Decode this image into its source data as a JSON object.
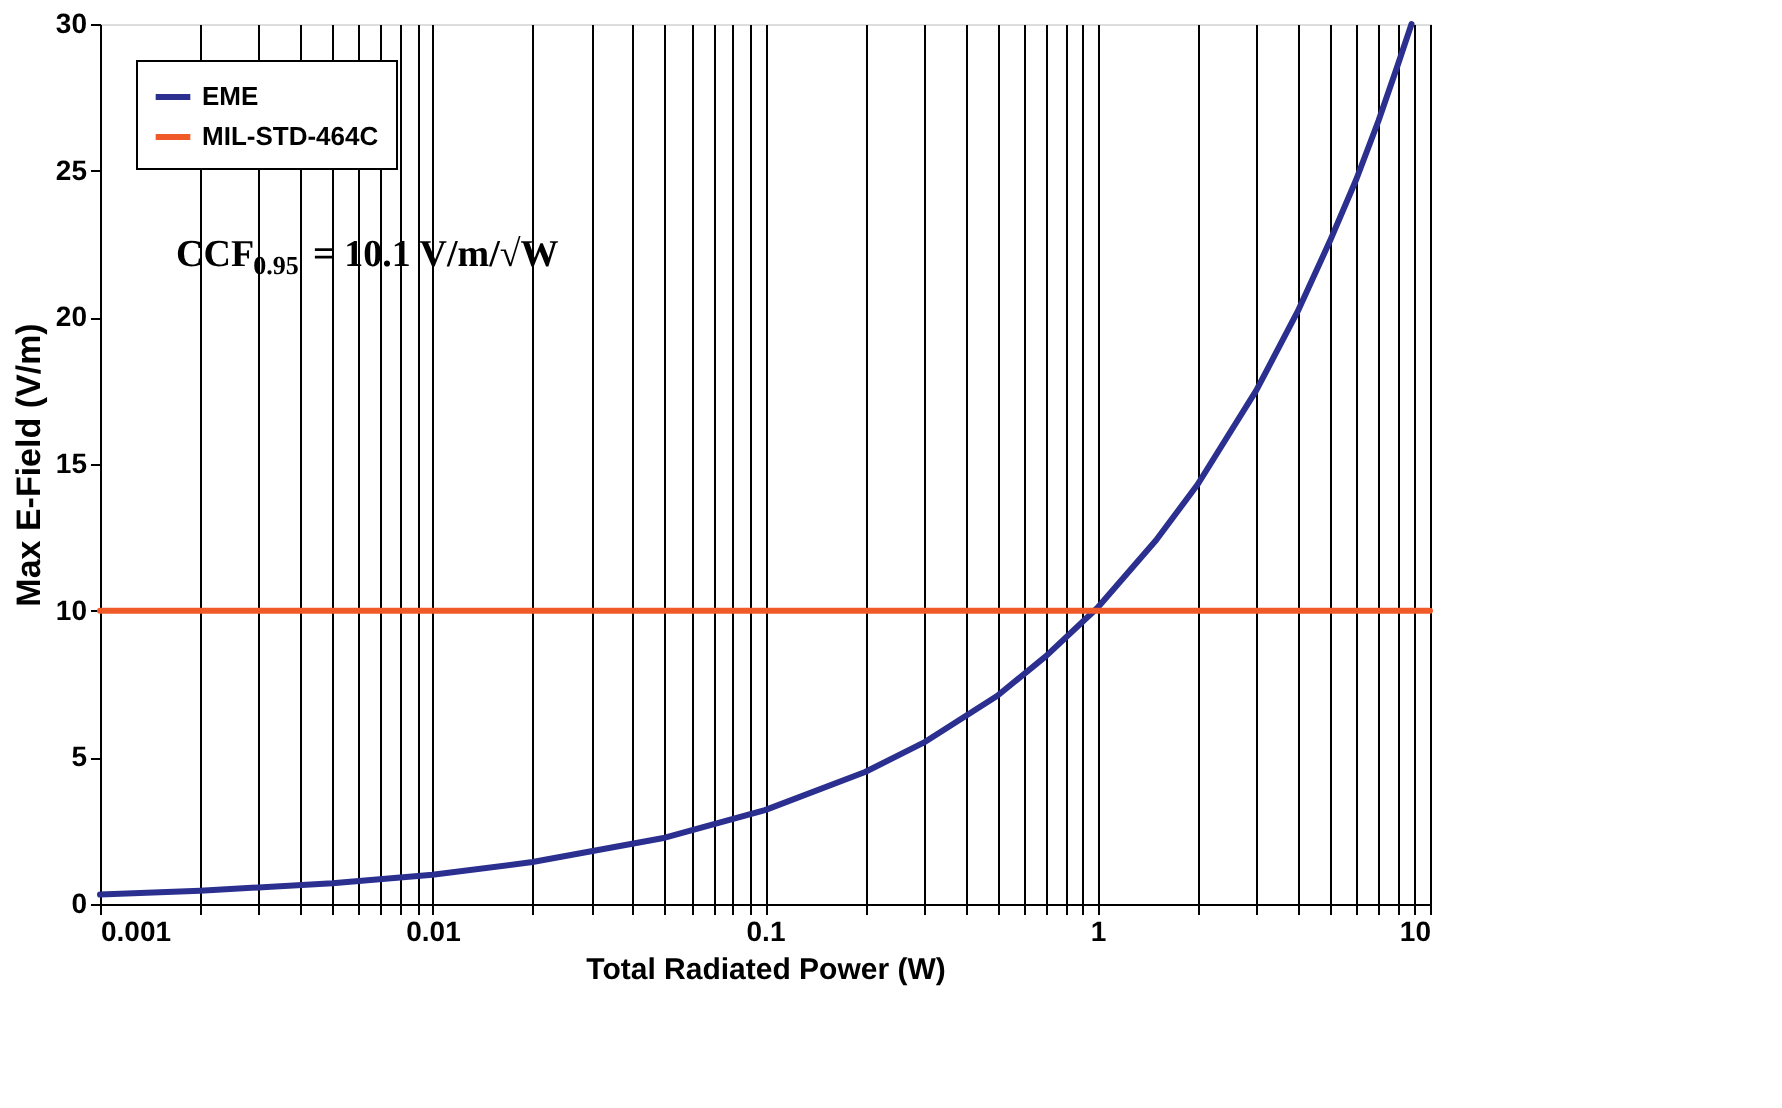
{
  "chart_data": {
    "type": "line",
    "xlabel": "Total Radiated Power (W)",
    "ylabel": "Max E-Field  (V/m)",
    "log": "x",
    "grid": "x",
    "legend": "top left",
    "line_style": "solid",
    "marker": "none",
    "xlim": [
      0.001,
      10
    ],
    "ylim": [
      0,
      30
    ],
    "xticks": [
      0.001,
      {
        "value": 0.002,
        "label": null
      },
      {
        "value": 0.003,
        "label": null
      },
      {
        "value": 0.004,
        "label": null
      },
      {
        "value": 0.005,
        "label": null
      },
      {
        "value": 0.006,
        "label": null
      },
      {
        "value": 0.007,
        "label": null
      },
      {
        "value": 0.008,
        "label": null
      },
      {
        "value": 0.009,
        "label": null
      },
      0.01,
      {
        "value": 0.02,
        "label": null
      },
      {
        "value": 0.03,
        "label": null
      },
      {
        "value": 0.04,
        "label": null
      },
      {
        "value": 0.05,
        "label": null
      },
      {
        "value": 0.06,
        "label": null
      },
      {
        "value": 0.07,
        "label": null
      },
      {
        "value": 0.08,
        "label": null
      },
      {
        "value": 0.09,
        "label": null
      },
      0.1,
      {
        "value": 0.2,
        "label": null
      },
      {
        "value": 0.3,
        "label": null
      },
      {
        "value": 0.4,
        "label": null
      },
      {
        "value": 0.5,
        "label": null
      },
      {
        "value": 0.6,
        "label": null
      },
      {
        "value": 0.7,
        "label": null
      },
      {
        "value": 0.8,
        "label": null
      },
      {
        "value": 0.9,
        "label": null
      },
      1,
      {
        "value": 2,
        "label": null
      },
      {
        "value": 3,
        "label": null
      },
      {
        "value": 4,
        "label": null
      },
      {
        "value": 5,
        "label": null
      },
      {
        "value": 6,
        "label": null
      },
      {
        "value": 7,
        "label": null
      },
      {
        "value": 8,
        "label": null
      },
      {
        "value": 9,
        "label": null
      },
      10
    ],
    "yticks": [
      0,
      5,
      10,
      15,
      20,
      25,
      30
    ],
    "series": [
      {
        "name": "EME",
        "color": "#2b2f8f",
        "x": [
          0.001,
          0.002,
          0.005,
          0.01,
          0.02,
          0.05,
          0.1,
          0.2,
          0.3,
          0.5,
          0.7,
          1,
          1.5,
          2,
          3,
          4,
          5,
          6,
          7,
          8,
          8.8
        ],
        "values": [
          0.32,
          0.45,
          0.71,
          1.0,
          1.43,
          2.26,
          3.2,
          4.5,
          5.5,
          7.1,
          8.45,
          10.1,
          12.4,
          14.3,
          17.5,
          20.2,
          22.6,
          24.7,
          26.7,
          28.6,
          30
        ]
      },
      {
        "name": "MIL-STD-464C",
        "color": "#f05a28",
        "x": [
          0.001,
          10
        ],
        "values": [
          10,
          10
        ]
      }
    ],
    "annotations": [
      "CCF$_{0.95}$ = 10.1 V/m/√W"
    ]
  }
}
